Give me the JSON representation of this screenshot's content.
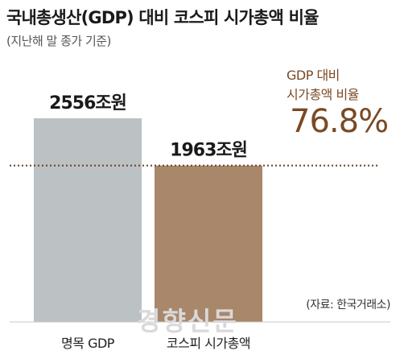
{
  "header": {
    "title": "국내총생산(GDP) 대비 코스피 시가총액 비율",
    "subtitle": "(지난해 말 종가 기준)"
  },
  "ratio": {
    "label_line1": "GDP 대비",
    "label_line2": "시가총액 비율",
    "value": "76.8%"
  },
  "source": "(자료: 한국거래소)",
  "watermark": "경향신문",
  "colors": {
    "gdp_bar": "#bcc1c3",
    "kospi_bar": "#a8876a",
    "reference_line": "#6b4a2c",
    "accent_text": "#7a4a24"
  },
  "chart_data": {
    "type": "bar",
    "title": "국내총생산(GDP) 대비 코스피 시가총액 비율",
    "subtitle": "(지난해 말 종가 기준)",
    "categories": [
      "명목 GDP",
      "코스피 시가총액"
    ],
    "values": [
      2556,
      1963
    ],
    "value_labels": [
      "2556조원",
      "1963조원"
    ],
    "unit": "조원",
    "ylim": [
      0,
      2556
    ],
    "reference_line": {
      "value": 1963,
      "style": "dotted"
    },
    "annotations": [
      {
        "text": "GDP 대비 시가총액 비율 76.8%"
      }
    ],
    "grid": false,
    "legend": "none"
  }
}
